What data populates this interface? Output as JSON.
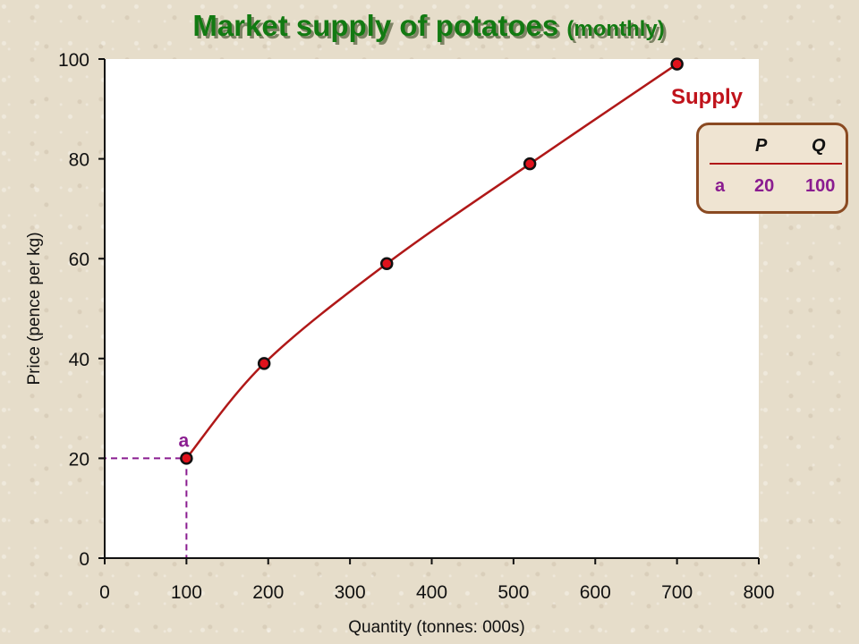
{
  "title": {
    "main": "Market supply of potatoes",
    "sub": "(monthly)"
  },
  "chart_data": {
    "type": "line",
    "xlabel": "Quantity (tonnes: 000s)",
    "ylabel": "Price (pence per kg)",
    "xlim": [
      0,
      800
    ],
    "ylim": [
      0,
      100
    ],
    "x_ticks": [
      0,
      100,
      200,
      300,
      400,
      500,
      600,
      700,
      800
    ],
    "y_ticks": [
      0,
      20,
      40,
      60,
      80,
      100
    ],
    "grid": false,
    "series": [
      {
        "name": "Supply",
        "color": "#c0131b",
        "points": [
          {
            "x": 100,
            "y": 20
          },
          {
            "x": 195,
            "y": 39
          },
          {
            "x": 345,
            "y": 59
          },
          {
            "x": 520,
            "y": 79
          },
          {
            "x": 700,
            "y": 99
          }
        ]
      }
    ],
    "highlight": {
      "label": "a",
      "x": 100,
      "y": 20,
      "guide_color": "#8a1c90"
    }
  },
  "table": {
    "headers": [
      "",
      "P",
      "Q"
    ],
    "row": [
      "a",
      "20",
      "100"
    ]
  }
}
